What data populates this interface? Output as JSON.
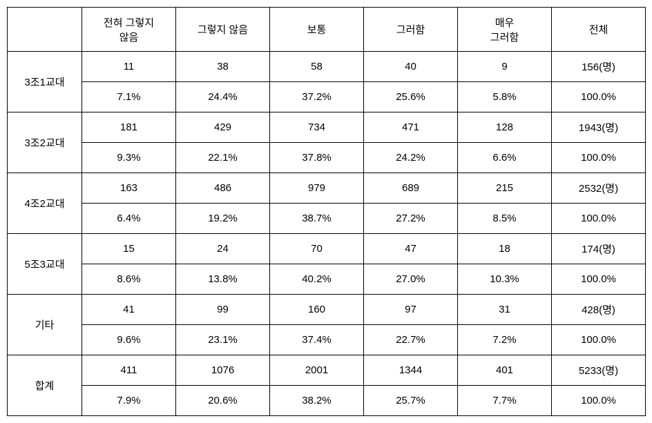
{
  "table": {
    "header": {
      "corner": "",
      "columns": [
        "전혀 그렇지\n않음",
        "그렇지 않음",
        "보통",
        "그러함",
        "매우\n그러함",
        "전체"
      ]
    },
    "rows": [
      {
        "label": "3조1교대",
        "counts": [
          "11",
          "38",
          "58",
          "40",
          "9",
          "156(명)"
        ],
        "percents": [
          "7.1%",
          "24.4%",
          "37.2%",
          "25.6%",
          "5.8%",
          "100.0%"
        ]
      },
      {
        "label": "3조2교대",
        "counts": [
          "181",
          "429",
          "734",
          "471",
          "128",
          "1943(명)"
        ],
        "percents": [
          "9.3%",
          "22.1%",
          "37.8%",
          "24.2%",
          "6.6%",
          "100.0%"
        ]
      },
      {
        "label": "4조2교대",
        "counts": [
          "163",
          "486",
          "979",
          "689",
          "215",
          "2532(명)"
        ],
        "percents": [
          "6.4%",
          "19.2%",
          "38.7%",
          "27.2%",
          "8.5%",
          "100.0%"
        ]
      },
      {
        "label": "5조3교대",
        "counts": [
          "15",
          "24",
          "70",
          "47",
          "18",
          "174(명)"
        ],
        "percents": [
          "8.6%",
          "13.8%",
          "40.2%",
          "27.0%",
          "10.3%",
          "100.0%"
        ]
      },
      {
        "label": "기타",
        "counts": [
          "41",
          "99",
          "160",
          "97",
          "31",
          "428(명)"
        ],
        "percents": [
          "9.6%",
          "23.1%",
          "37.4%",
          "22.7%",
          "7.2%",
          "100.0%"
        ]
      },
      {
        "label": "합계",
        "counts": [
          "411",
          "1076",
          "2001",
          "1344",
          "401",
          "5233(명)"
        ],
        "percents": [
          "7.9%",
          "20.6%",
          "38.2%",
          "25.7%",
          "7.7%",
          "100.0%"
        ]
      }
    ]
  }
}
